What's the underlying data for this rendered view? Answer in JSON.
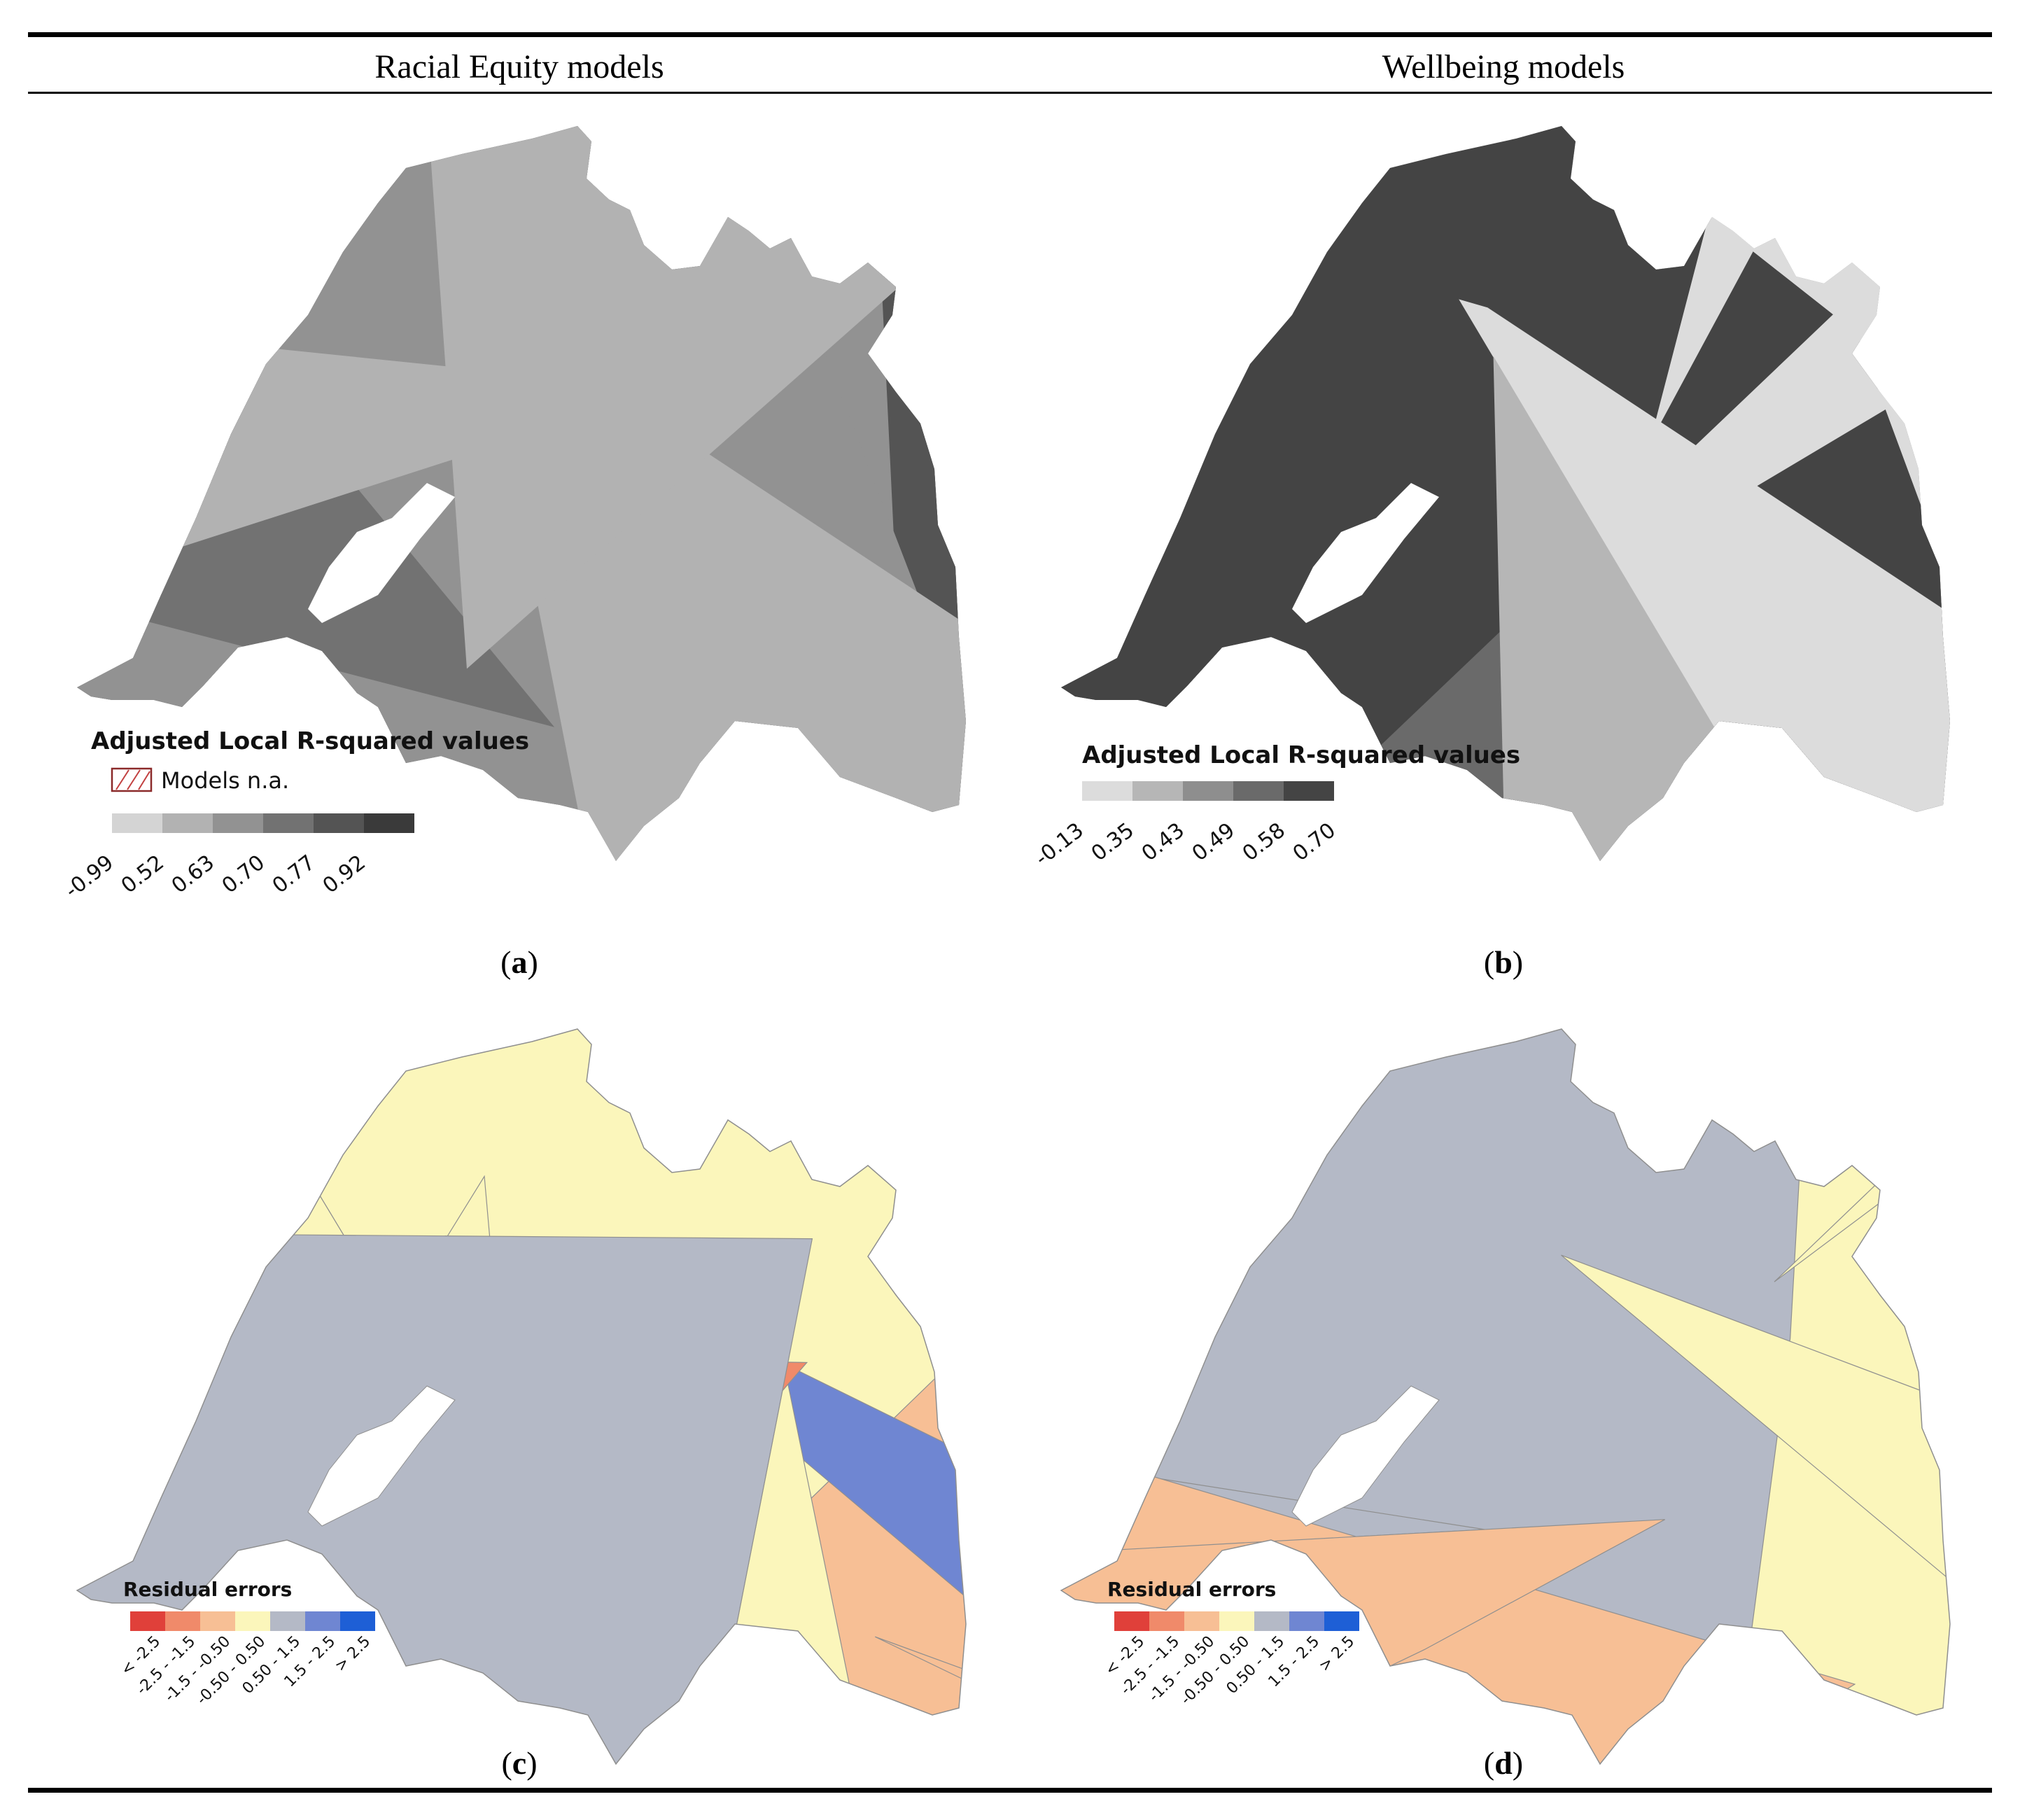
{
  "columns": {
    "left_title": "Racial Equity models",
    "right_title": "Wellbeing models"
  },
  "panels": [
    {
      "label": "a",
      "legend": {
        "title": "Adjusted Local R-squared values",
        "na_label": "Models n.a.",
        "breaks": [
          "-0.99",
          "0.52",
          "0.63",
          "0.70",
          "0.77",
          "0.92"
        ],
        "colors": [
          "#d4d4d4",
          "#b2b2b2",
          "#929292",
          "#727272",
          "#545454",
          "#3a3a3a"
        ]
      }
    },
    {
      "label": "b",
      "legend": {
        "title": "Adjusted Local R-squared values",
        "breaks": [
          "-0.13",
          "0.35",
          "0.43",
          "0.49",
          "0.58",
          "0.70"
        ],
        "colors": [
          "#dcdcdc",
          "#b6b6b6",
          "#8e8e8e",
          "#6a6a6a",
          "#444444"
        ]
      }
    },
    {
      "label": "c",
      "legend": {
        "title": "Residual errors",
        "classes": [
          "< -2.5",
          "-2.5 - -1.5",
          "-1.5 - -0.50",
          "-0.50 - 0.50",
          "0.50 - 1.5",
          "1.5 - 2.5",
          "> 2.5"
        ],
        "colors": [
          "#e0403a",
          "#f08a6a",
          "#f7bf95",
          "#fbf6bb",
          "#b4b9c6",
          "#6f86d2",
          "#1e5fd6"
        ]
      }
    },
    {
      "label": "d",
      "legend": {
        "title": "Residual errors",
        "classes": [
          "< -2.5",
          "-2.5 - -1.5",
          "-1.5 - -0.50",
          "-0.50 - 0.50",
          "0.50 - 1.5",
          "1.5 - 2.5",
          "> 2.5"
        ],
        "colors": [
          "#e0403a",
          "#f08a6a",
          "#f7bf95",
          "#fbf6bb",
          "#b4b9c6",
          "#6f86d2",
          "#1e5fd6"
        ]
      }
    }
  ]
}
